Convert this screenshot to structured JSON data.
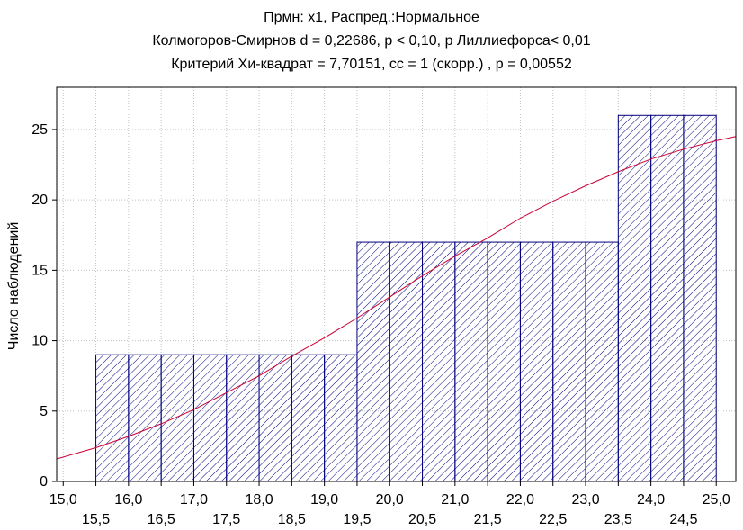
{
  "chart_data": {
    "type": "bar",
    "title_lines": [
      "Прмн: x1, Распред.:Нормальное",
      "Колмогоров-Смирнов d = 0,22686, p < 0,10, р Лиллиефорса< 0,01",
      "Критерий Хи-квадрат = 7,70151, сс = 1 (скорр.) , p = 0,00552"
    ],
    "ylabel": "Число наблюдений",
    "xlim": [
      14.9,
      25.3
    ],
    "ylim": [
      0,
      28
    ],
    "yticks": [
      0,
      5,
      10,
      15,
      20,
      25
    ],
    "xticks_upper": [
      "15,0",
      "16,0",
      "17,0",
      "18,0",
      "19,0",
      "20,0",
      "21,0",
      "22,0",
      "23,0",
      "24,0",
      "25,0"
    ],
    "xticks_lower": [
      "15,5",
      "16,5",
      "17,5",
      "18,5",
      "19,5",
      "20,5",
      "21,5",
      "22,5",
      "23,5",
      "24,5"
    ],
    "bars": [
      {
        "from": 15.5,
        "to": 16.0,
        "count": 9
      },
      {
        "from": 16.0,
        "to": 16.5,
        "count": 9
      },
      {
        "from": 16.5,
        "to": 17.0,
        "count": 9
      },
      {
        "from": 17.0,
        "to": 17.5,
        "count": 9
      },
      {
        "from": 17.5,
        "to": 18.0,
        "count": 9
      },
      {
        "from": 18.0,
        "to": 18.5,
        "count": 9
      },
      {
        "from": 18.5,
        "to": 19.0,
        "count": 9
      },
      {
        "from": 19.0,
        "to": 19.5,
        "count": 9
      },
      {
        "from": 19.5,
        "to": 20.0,
        "count": 17
      },
      {
        "from": 20.0,
        "to": 20.5,
        "count": 17
      },
      {
        "from": 20.5,
        "to": 21.0,
        "count": 17
      },
      {
        "from": 21.0,
        "to": 21.5,
        "count": 17
      },
      {
        "from": 21.5,
        "to": 22.0,
        "count": 17
      },
      {
        "from": 22.0,
        "to": 22.5,
        "count": 17
      },
      {
        "from": 22.5,
        "to": 23.0,
        "count": 17
      },
      {
        "from": 23.0,
        "to": 23.5,
        "count": 17
      },
      {
        "from": 23.5,
        "to": 24.0,
        "count": 26
      },
      {
        "from": 24.0,
        "to": 24.5,
        "count": 26
      },
      {
        "from": 24.5,
        "to": 25.0,
        "count": 26
      }
    ],
    "normal_curve": {
      "x": [
        14.9,
        15.5,
        16.0,
        16.5,
        17.0,
        17.5,
        18.0,
        18.5,
        19.0,
        19.5,
        20.0,
        20.5,
        21.0,
        21.5,
        22.0,
        22.5,
        23.0,
        23.5,
        24.0,
        24.5,
        25.0,
        25.3
      ],
      "y": [
        1.6,
        2.4,
        3.2,
        4.1,
        5.1,
        6.3,
        7.5,
        8.9,
        10.2,
        11.6,
        13.1,
        14.6,
        16.0,
        17.3,
        18.7,
        19.9,
        21.0,
        22.0,
        22.9,
        23.6,
        24.2,
        24.5
      ]
    },
    "grid": true,
    "colors": {
      "bar_edge": "#00007f",
      "hatch": "#00007f",
      "curve": "#cc0033",
      "grid": "#c0c0c0"
    }
  }
}
